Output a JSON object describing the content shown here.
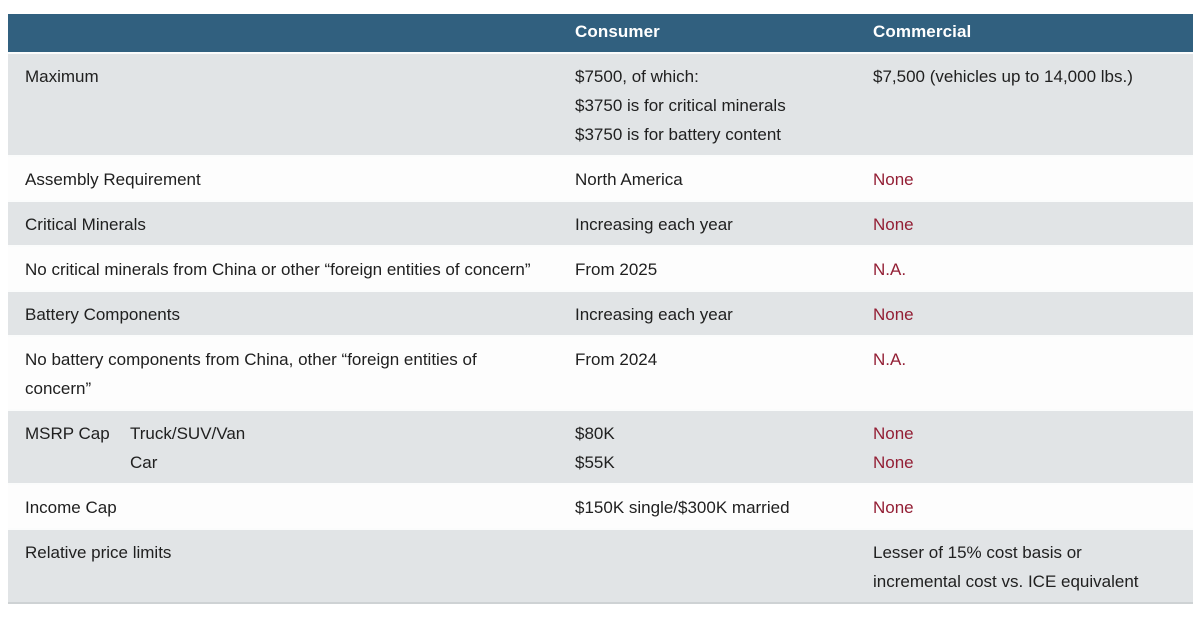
{
  "table": {
    "header": {
      "col1": "",
      "col2": "Consumer",
      "col3": "Commercial"
    },
    "colors": {
      "header_bg": "#31607f",
      "header_text": "#ffffff",
      "row_gray": "#e1e4e6",
      "row_white": "#fdfdfd",
      "body_text": "#202020",
      "accent_red": "#931f35"
    },
    "rows": [
      {
        "label": "Maximum",
        "consumer_lines": [
          "$7500, of which:",
          "$3750 is for critical minerals",
          "$3750 is for battery content"
        ],
        "commercial_lines": [
          "$7,500 (vehicles up to 14,000 lbs.)"
        ],
        "commercial_red": false
      },
      {
        "label": "Assembly Requirement",
        "consumer_lines": [
          "North America"
        ],
        "commercial_lines": [
          "None"
        ],
        "commercial_red": true
      },
      {
        "label": "Critical Minerals",
        "consumer_lines": [
          "Increasing each year"
        ],
        "commercial_lines": [
          "None"
        ],
        "commercial_red": true
      },
      {
        "label": "No critical minerals from China or other “foreign entities of concern”",
        "consumer_lines": [
          "From 2025"
        ],
        "commercial_lines": [
          "N.A."
        ],
        "commercial_red": true
      },
      {
        "label": "Battery Components",
        "consumer_lines": [
          "Increasing each year"
        ],
        "commercial_lines": [
          "None"
        ],
        "commercial_red": true
      },
      {
        "label": "No battery components from China, other “foreign entities of concern”",
        "consumer_lines": [
          "From 2024"
        ],
        "commercial_lines": [
          "N.A."
        ],
        "commercial_red": true
      },
      {
        "label": "MSRP Cap",
        "sublabels": [
          "Truck/SUV/Van",
          "Car"
        ],
        "consumer_lines": [
          "$80K",
          "$55K"
        ],
        "commercial_lines": [
          "None",
          "None"
        ],
        "commercial_red": true
      },
      {
        "label": "Income Cap",
        "consumer_lines": [
          "$150K single/$300K married"
        ],
        "commercial_lines": [
          "None"
        ],
        "commercial_red": true
      },
      {
        "label": "Relative price limits",
        "consumer_lines": [],
        "commercial_lines": [
          "Lesser of 15% cost basis or",
          "incremental cost vs. ICE equivalent"
        ],
        "commercial_red": false
      }
    ]
  }
}
